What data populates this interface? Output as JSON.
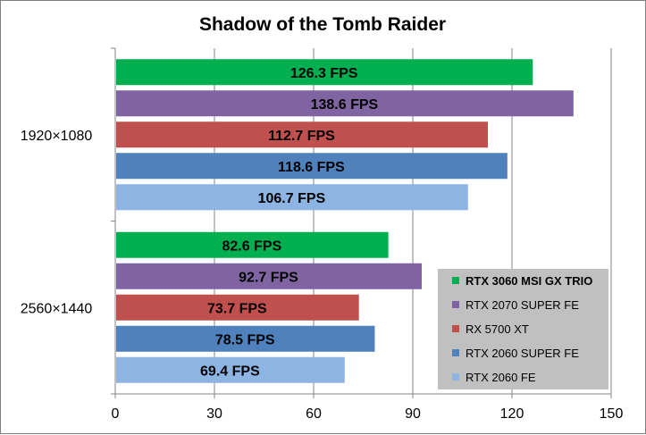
{
  "chart_data": {
    "type": "bar",
    "orientation": "horizontal",
    "title": "Shadow of the Tomb Raider",
    "categories": [
      "1920×1080",
      "2560×1440"
    ],
    "series": [
      {
        "name": "RTX 3060 MSI GX TRIO",
        "values": [
          126.3,
          82.6
        ],
        "labels": [
          "126.3 FPS",
          "82.6 FPS"
        ],
        "color": "#00b050",
        "legend_bold": true
      },
      {
        "name": "RTX 2070 SUPER FE",
        "values": [
          138.6,
          92.7
        ],
        "labels": [
          "138.6 FPS",
          "92.7 FPS"
        ],
        "color": "#8064a2",
        "legend_bold": false
      },
      {
        "name": "RX 5700 XT",
        "values": [
          112.7,
          73.7
        ],
        "labels": [
          "112.7 FPS",
          "73.7 FPS"
        ],
        "color": "#c0504d",
        "legend_bold": false
      },
      {
        "name": "RTX 2060 SUPER FE",
        "values": [
          118.6,
          78.5
        ],
        "labels": [
          "118.6 FPS",
          "78.5 FPS"
        ],
        "color": "#4f81bd",
        "legend_bold": false
      },
      {
        "name": "RTX 2060 FE",
        "values": [
          106.7,
          69.4
        ],
        "labels": [
          "106.7 FPS",
          "69.4 FPS"
        ],
        "color": "#8eb4e3",
        "legend_bold": false
      }
    ],
    "xlim": [
      0,
      150
    ],
    "xticks": [
      "0",
      "30",
      "60",
      "90",
      "120",
      "150"
    ],
    "xtick_values": [
      0,
      30,
      60,
      90,
      120,
      150
    ],
    "grid": true,
    "legend_position": "bottom-right",
    "legend_background": "#c0c0c0"
  }
}
